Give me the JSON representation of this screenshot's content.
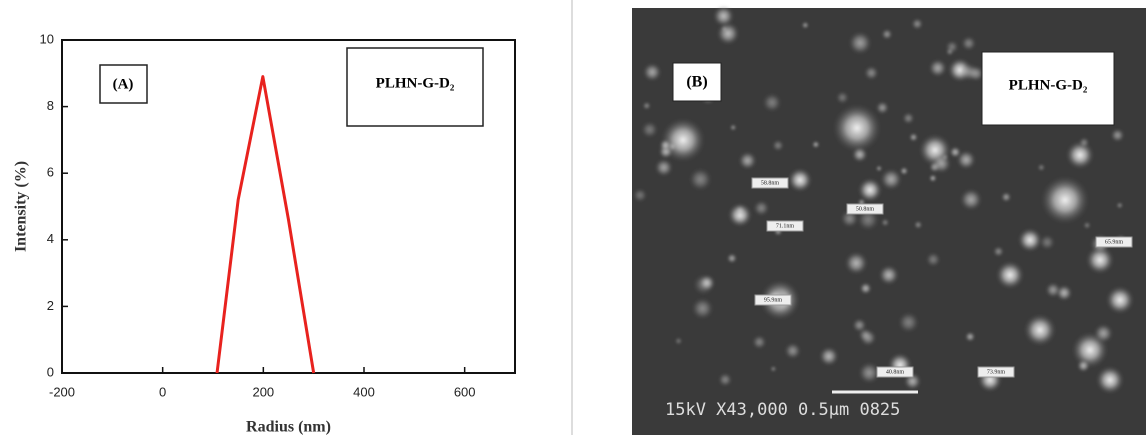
{
  "chart_data": {
    "type": "line",
    "x_label": "Radius (nm)",
    "y_label": "Intensity (%)",
    "annotations": [
      "(A)",
      "PLHN-G-D₂"
    ],
    "x": [
      108,
      150,
      199,
      250,
      300
    ],
    "series": [
      {
        "name": "PLHN-G-D₂",
        "color": "#e8221e",
        "values": [
          0,
          5.2,
          8.9,
          4.6,
          0
        ]
      }
    ],
    "xlim": [
      -200,
      700
    ],
    "xticks": [
      -200,
      0,
      200,
      400,
      600
    ],
    "ylim": [
      0,
      10
    ],
    "yticks": [
      0,
      2,
      4,
      6,
      8,
      10
    ]
  },
  "image_b": {
    "label": "(B)",
    "sample": "PLHN-G-D₂",
    "scale_text": "15kV  X43,000  0.5μm  0825",
    "particle_labels": [
      "58.8nm",
      "71.1nm",
      "50.8nm",
      "65.9nm",
      "95.9nm",
      "40.8nm",
      "73.9nm"
    ]
  }
}
